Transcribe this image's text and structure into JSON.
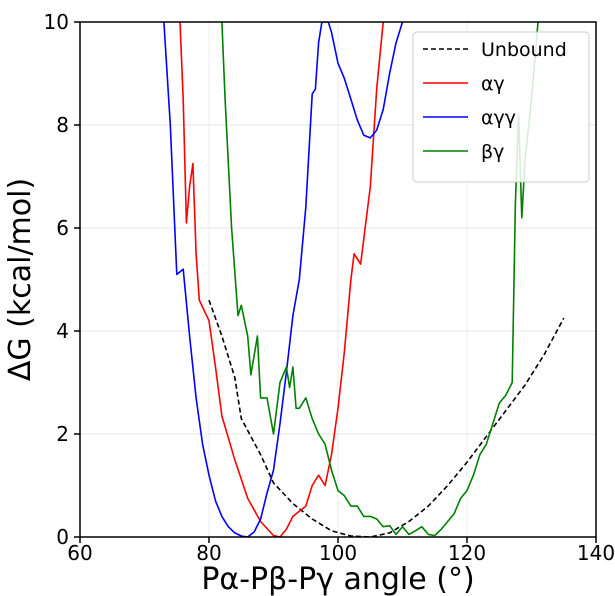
{
  "chart_data": {
    "type": "line",
    "title": "",
    "xlabel": "Pα-Pβ-Pγ angle (°)",
    "ylabel": "ΔG (kcal/mol)",
    "xlim": [
      60,
      140
    ],
    "ylim": [
      0,
      10
    ],
    "xticks": [
      "60",
      "80",
      "100",
      "120",
      "140"
    ],
    "yticks": [
      "0",
      "2",
      "4",
      "6",
      "8",
      "10"
    ],
    "grid": true,
    "legend_position": "top-right",
    "series": [
      {
        "name": "Unbound",
        "color": "#000000",
        "style": "dashed",
        "points": [
          [
            80,
            4.6
          ],
          [
            82,
            3.9
          ],
          [
            84,
            3.1
          ],
          [
            85,
            2.3
          ],
          [
            88,
            1.6
          ],
          [
            90,
            1.05
          ],
          [
            93,
            0.65
          ],
          [
            96,
            0.35
          ],
          [
            99,
            0.12
          ],
          [
            102,
            0.02
          ],
          [
            105,
            0.0
          ],
          [
            108,
            0.08
          ],
          [
            111,
            0.3
          ],
          [
            114,
            0.6
          ],
          [
            117,
            1.0
          ],
          [
            120,
            1.45
          ],
          [
            123,
            1.95
          ],
          [
            126,
            2.45
          ],
          [
            129,
            2.95
          ],
          [
            132,
            3.55
          ],
          [
            135,
            4.25
          ]
        ]
      },
      {
        "name": "αγ",
        "color": "#ff0000",
        "style": "solid",
        "points": [
          [
            75.5,
            10.0
          ],
          [
            76.0,
            8.5
          ],
          [
            76.5,
            6.1
          ],
          [
            77.0,
            6.8
          ],
          [
            77.5,
            7.25
          ],
          [
            78.0,
            5.5
          ],
          [
            78.5,
            4.6
          ],
          [
            80,
            4.2
          ],
          [
            81,
            3.3
          ],
          [
            82,
            2.35
          ],
          [
            84,
            1.5
          ],
          [
            86,
            0.75
          ],
          [
            88,
            0.3
          ],
          [
            90,
            0.03
          ],
          [
            91,
            0.0
          ],
          [
            92,
            0.15
          ],
          [
            93,
            0.4
          ],
          [
            95,
            0.6
          ],
          [
            96,
            1.0
          ],
          [
            97,
            1.2
          ],
          [
            98,
            1.0
          ],
          [
            99,
            1.6
          ],
          [
            100,
            2.5
          ],
          [
            101,
            3.6
          ],
          [
            102,
            5.0
          ],
          [
            102.5,
            5.5
          ],
          [
            103.5,
            5.3
          ],
          [
            105,
            6.8
          ],
          [
            106,
            8.7
          ],
          [
            107,
            10.0
          ]
        ]
      },
      {
        "name": "αγγ",
        "color": "#0000ff",
        "style": "solid",
        "points": [
          [
            73,
            10.0
          ],
          [
            74,
            8.0
          ],
          [
            75,
            5.1
          ],
          [
            76,
            5.2
          ],
          [
            77,
            3.9
          ],
          [
            78,
            2.7
          ],
          [
            79,
            1.8
          ],
          [
            80,
            1.2
          ],
          [
            81,
            0.7
          ],
          [
            82,
            0.4
          ],
          [
            83,
            0.2
          ],
          [
            84,
            0.08
          ],
          [
            85,
            0.02
          ],
          [
            86,
            0.0
          ],
          [
            87,
            0.1
          ],
          [
            88,
            0.35
          ],
          [
            89,
            0.85
          ],
          [
            90,
            1.3
          ],
          [
            91,
            2.2
          ],
          [
            92,
            3.2
          ],
          [
            93,
            4.3
          ],
          [
            94,
            5.0
          ],
          [
            95,
            6.4
          ],
          [
            96,
            8.6
          ],
          [
            96.5,
            8.7
          ],
          [
            97,
            9.6
          ],
          [
            97.5,
            10.0
          ],
          [
            98.5,
            10.0
          ],
          [
            99,
            9.8
          ],
          [
            100,
            9.2
          ],
          [
            101,
            8.9
          ],
          [
            102,
            8.5
          ],
          [
            103,
            8.1
          ],
          [
            104,
            7.8
          ],
          [
            105,
            7.75
          ],
          [
            106,
            7.9
          ],
          [
            107,
            8.3
          ],
          [
            108,
            9.0
          ],
          [
            109,
            9.6
          ],
          [
            110,
            10.0
          ]
        ]
      },
      {
        "name": "βγ",
        "color": "#008000",
        "style": "solid",
        "points": [
          [
            82,
            10.0
          ],
          [
            82.5,
            8.5
          ],
          [
            83.5,
            6.0
          ],
          [
            84.5,
            4.3
          ],
          [
            85,
            4.5
          ],
          [
            86,
            3.9
          ],
          [
            86.5,
            3.15
          ],
          [
            87.5,
            3.9
          ],
          [
            88,
            2.7
          ],
          [
            89,
            2.7
          ],
          [
            90,
            2.0
          ],
          [
            91,
            3.0
          ],
          [
            92,
            3.3
          ],
          [
            92.5,
            2.9
          ],
          [
            93,
            3.3
          ],
          [
            93.5,
            2.5
          ],
          [
            94,
            2.5
          ],
          [
            95,
            2.7
          ],
          [
            96,
            2.3
          ],
          [
            97,
            2.0
          ],
          [
            98,
            1.8
          ],
          [
            99,
            1.3
          ],
          [
            100,
            0.9
          ],
          [
            101,
            0.8
          ],
          [
            102,
            0.6
          ],
          [
            103,
            0.6
          ],
          [
            104,
            0.4
          ],
          [
            105,
            0.4
          ],
          [
            106,
            0.35
          ],
          [
            107,
            0.2
          ],
          [
            108,
            0.22
          ],
          [
            109,
            0.05
          ],
          [
            110,
            0.2
          ],
          [
            111,
            0.05
          ],
          [
            112,
            0.12
          ],
          [
            113,
            0.2
          ],
          [
            114,
            0.05
          ],
          [
            115,
            0.03
          ],
          [
            116,
            0.15
          ],
          [
            117,
            0.3
          ],
          [
            118,
            0.45
          ],
          [
            119,
            0.75
          ],
          [
            120,
            0.9
          ],
          [
            121,
            1.2
          ],
          [
            122,
            1.6
          ],
          [
            123,
            1.8
          ],
          [
            124,
            2.2
          ],
          [
            125,
            2.6
          ],
          [
            126,
            2.75
          ],
          [
            127,
            3.0
          ],
          [
            127.5,
            6.5
          ],
          [
            128,
            8.2
          ],
          [
            128.5,
            6.2
          ],
          [
            129,
            7.3
          ],
          [
            130,
            8.5
          ],
          [
            131,
            10.0
          ]
        ]
      }
    ]
  }
}
